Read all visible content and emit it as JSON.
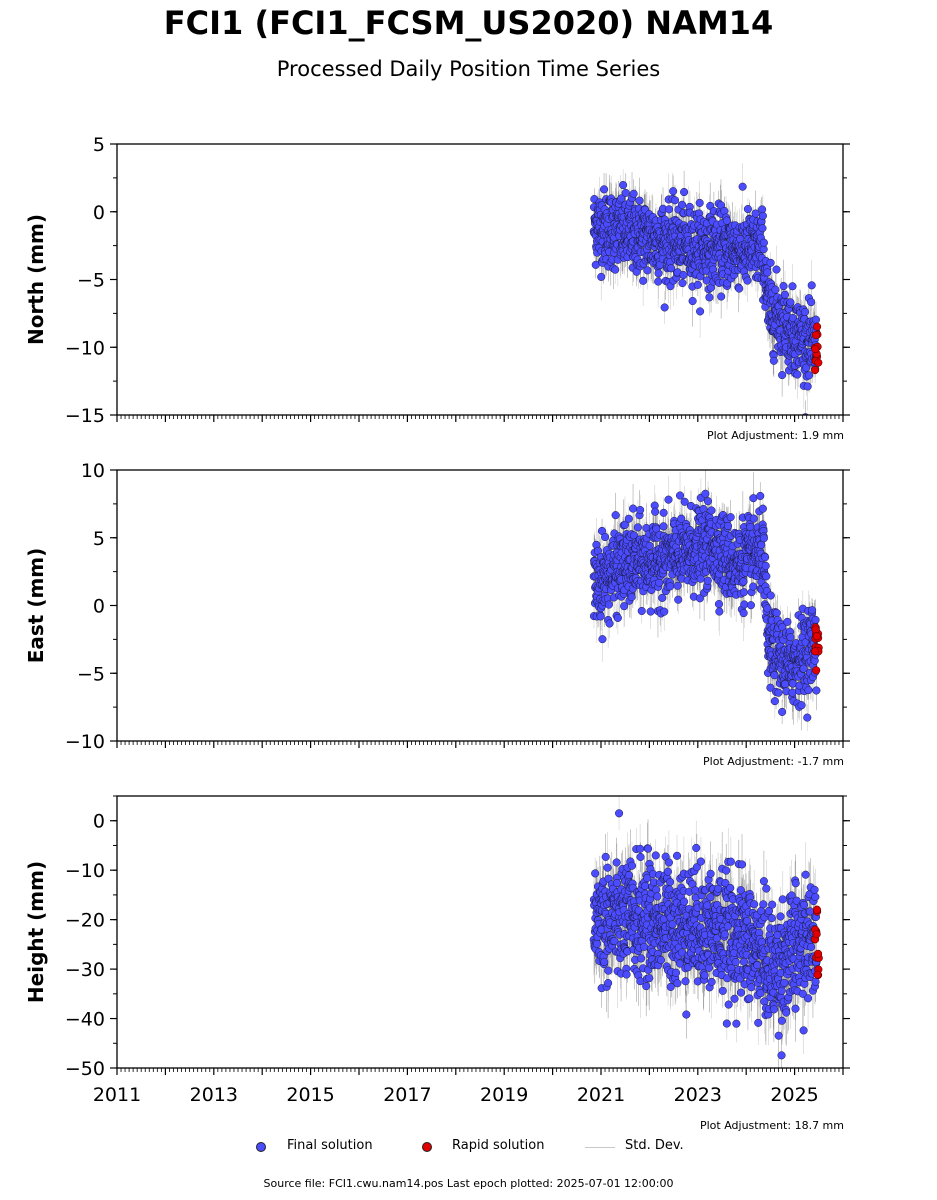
{
  "header": {
    "title": "FCI1 (FCI1_FCSM_US2020) NAM14",
    "subtitle": "Processed Daily Position Time Series"
  },
  "colors": {
    "final": "#4b4bff",
    "rapid": "#e00000",
    "stddev": "#c8c8c8",
    "axis": "#000000"
  },
  "chart_data": [
    {
      "type": "scatter",
      "ylabel": "North (mm)",
      "ylim": [
        -15,
        5
      ],
      "yticks": [
        5,
        0,
        -5,
        -10,
        -15
      ],
      "ytick_labels": [
        "5",
        "0",
        "−5",
        "−10",
        "−15"
      ],
      "xlim": [
        2011,
        2026
      ],
      "adjustment": "Plot Adjustment: 1.9 mm",
      "trend": [
        [
          2020.85,
          -1.0
        ],
        [
          2022.0,
          -2.0
        ],
        [
          2023.0,
          -2.6
        ],
        [
          2024.35,
          -2.8
        ],
        [
          2024.45,
          -7.0
        ],
        [
          2025.0,
          -9.0
        ],
        [
          2025.5,
          -10.2
        ]
      ],
      "noise": 1.4,
      "err": 1.3
    },
    {
      "type": "scatter",
      "ylabel": "East (mm)",
      "ylim": [
        -10,
        10
      ],
      "yticks": [
        10,
        5,
        0,
        -5,
        -10
      ],
      "ytick_labels": [
        "10",
        "5",
        "0",
        "−5",
        "−10"
      ],
      "xlim": [
        2011,
        2026
      ],
      "adjustment": "Plot Adjustment: -1.7 mm",
      "trend": [
        [
          2020.85,
          1.5
        ],
        [
          2021.5,
          3.0
        ],
        [
          2022.5,
          3.5
        ],
        [
          2023.3,
          4.5
        ],
        [
          2023.8,
          3.0
        ],
        [
          2024.35,
          4.0
        ],
        [
          2024.45,
          -3.0
        ],
        [
          2024.9,
          -4.5
        ],
        [
          2025.5,
          -2.5
        ]
      ],
      "noise": 1.5,
      "err": 1.4
    },
    {
      "type": "scatter",
      "ylabel": "Height (mm)",
      "ylim": [
        -50,
        5
      ],
      "yticks": [
        0,
        -10,
        -20,
        -30,
        -40,
        -50
      ],
      "ytick_labels": [
        "0",
        "−10",
        "−20",
        "−30",
        "−40",
        "−50"
      ],
      "xlim": [
        2011,
        2026
      ],
      "xticks": [
        2011,
        2013,
        2015,
        2017,
        2019,
        2021,
        2023,
        2025
      ],
      "xtick_labels": [
        "2011",
        "2013",
        "2015",
        "2017",
        "2019",
        "2021",
        "2023",
        "2025"
      ],
      "adjustment": "Plot Adjustment: 18.7 mm",
      "trend": [
        [
          2020.85,
          -20.0
        ],
        [
          2022.0,
          -20.0
        ],
        [
          2023.0,
          -21.0
        ],
        [
          2024.0,
          -24.0
        ],
        [
          2024.6,
          -30.0
        ],
        [
          2025.0,
          -26.0
        ],
        [
          2025.5,
          -24.0
        ]
      ],
      "noise": 6.0,
      "err": 5.0
    }
  ],
  "series_info": {
    "final_start": 2020.85,
    "final_end": 2025.45,
    "rapid_start": 2025.42,
    "rapid_end": 2025.5
  },
  "legend": {
    "final": "Final solution",
    "rapid": "Rapid solution",
    "stddev": "Std. Dev."
  },
  "footer": {
    "source": "Source file: FCI1.cwu.nam14.pos  Last epoch plotted: 2025-07-01 12:00:00"
  }
}
